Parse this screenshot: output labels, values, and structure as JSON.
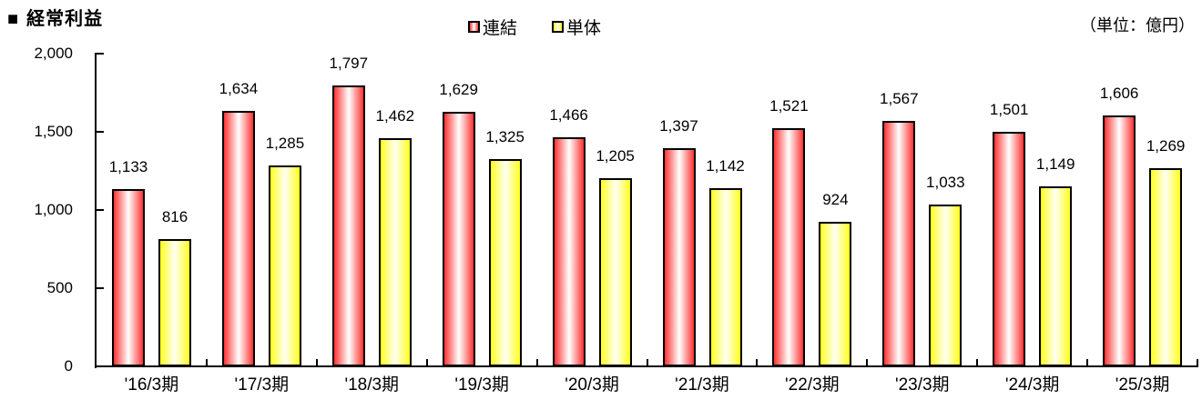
{
  "header": {
    "title_bullet": "■",
    "title": "経常利益",
    "unit_label": "（単位：億円）"
  },
  "chart_data": {
    "type": "bar",
    "title": "経常利益",
    "unit": "億円",
    "categories": [
      "'16/3期",
      "'17/3期",
      "'18/3期",
      "'19/3期",
      "'20/3期",
      "'21/3期",
      "'22/3期",
      "'23/3期",
      "'24/3期",
      "'25/3期"
    ],
    "series": [
      {
        "key": "consolidated",
        "name": "連結",
        "color": "#ff3333",
        "center_color": "#ffffff",
        "values": [
          1133,
          1634,
          1797,
          1629,
          1466,
          1397,
          1521,
          1567,
          1501,
          1606
        ]
      },
      {
        "key": "standalone",
        "name": "単体",
        "color": "#ffff1e",
        "center_color": "#fffff4",
        "values": [
          816,
          1285,
          1462,
          1325,
          1205,
          1142,
          924,
          1033,
          1149,
          1269
        ]
      }
    ],
    "ylim": [
      0,
      2000
    ],
    "yticks": [
      0,
      500,
      1000,
      1500,
      2000
    ],
    "ytick_labels": [
      "0",
      "500",
      "1,000",
      "1,500",
      "2,000"
    ],
    "grid": false,
    "legend_position": "top-center",
    "value_labels": true
  }
}
